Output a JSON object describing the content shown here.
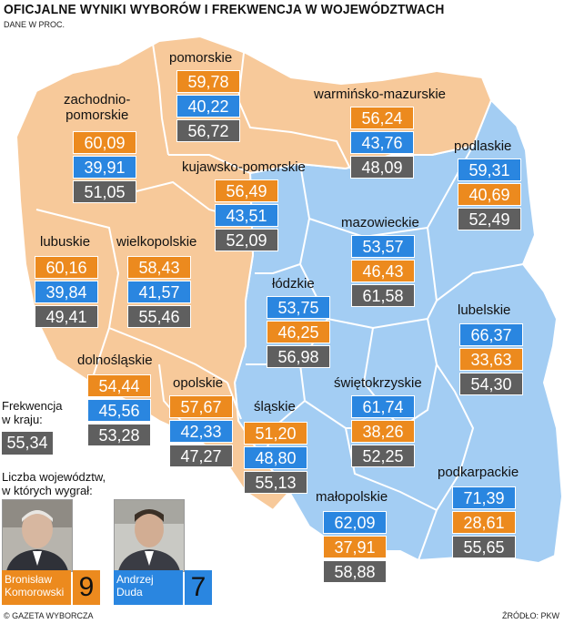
{
  "title": "OFICJALNE WYNIKI WYBORÓW I FREKWENCJA W WOJEWÓDZTWACH",
  "subtitle": "DANE W PROC.",
  "colors": {
    "komorowski": "#ec8a1e",
    "duda": "#2a86e0",
    "turnout": "#5f5f5f",
    "map_orange": "#f7c99a",
    "map_blue": "#a3cdf3"
  },
  "regions": {
    "pomorskie": {
      "name": "pomorskie",
      "v1": "59,78",
      "v2": "40,22",
      "turnout": "56,72"
    },
    "zachodniopomorskie": {
      "name_line1": "zachodnio-",
      "name_line2": "pomorskie",
      "v1": "60,09",
      "v2": "39,91",
      "turnout": "51,05"
    },
    "warminsko": {
      "name": "warmińsko-mazurskie",
      "v1": "56,24",
      "v2": "43,76",
      "turnout": "48,09"
    },
    "podlaskie": {
      "name": "podlaskie",
      "v1": "59,31",
      "v2": "40,69",
      "turnout": "52,49"
    },
    "kujawsko": {
      "name": "kujawsko-pomorskie",
      "v1": "56,49",
      "v2": "43,51",
      "turnout": "52,09"
    },
    "mazowieckie": {
      "name": "mazowieckie",
      "v1": "53,57",
      "v2": "46,43",
      "turnout": "61,58"
    },
    "lubuskie": {
      "name": "lubuskie",
      "v1": "60,16",
      "v2": "39,84",
      "turnout": "49,41"
    },
    "wielkopolskie": {
      "name": "wielkopolskie",
      "v1": "58,43",
      "v2": "41,57",
      "turnout": "55,46"
    },
    "lodzkie": {
      "name": "łódzkie",
      "v1": "53,75",
      "v2": "46,25",
      "turnout": "56,98"
    },
    "lubelskie": {
      "name": "lubelskie",
      "v1": "66,37",
      "v2": "33,63",
      "turnout": "54,30"
    },
    "dolnoslaskie": {
      "name": "dolnośląskie",
      "v1": "54,44",
      "v2": "45,56",
      "turnout": "53,28"
    },
    "opolskie": {
      "name": "opolskie",
      "v1": "57,67",
      "v2": "42,33",
      "turnout": "47,27"
    },
    "slaskie": {
      "name": "śląskie",
      "v1": "51,20",
      "v2": "48,80",
      "turnout": "55,13"
    },
    "swietokrzyskie": {
      "name": "świętokrzyskie",
      "v1": "61,74",
      "v2": "38,26",
      "turnout": "52,25"
    },
    "malopolskie": {
      "name": "małopolskie",
      "v1": "62,09",
      "v2": "37,91",
      "turnout": "58,88"
    },
    "podkarpackie": {
      "name": "podkarpackie",
      "v1": "71,39",
      "v2": "28,61",
      "turnout": "55,65"
    }
  },
  "turnout_national": {
    "label_line1": "Frekwencja",
    "label_line2": "w kraju:",
    "value": "55,34"
  },
  "won_count": {
    "label_line1": "Liczba województw,",
    "label_line2": "w których wygrał:"
  },
  "candidates": {
    "komorowski": {
      "first": "Bronisław",
      "last": "Komorowski",
      "count": "9"
    },
    "duda": {
      "first": "Andrzej",
      "last": "Duda",
      "count": "7"
    }
  },
  "footer": {
    "left": "© GAZETA WYBORCZA",
    "right": "ŹRÓDŁO: PKW"
  }
}
